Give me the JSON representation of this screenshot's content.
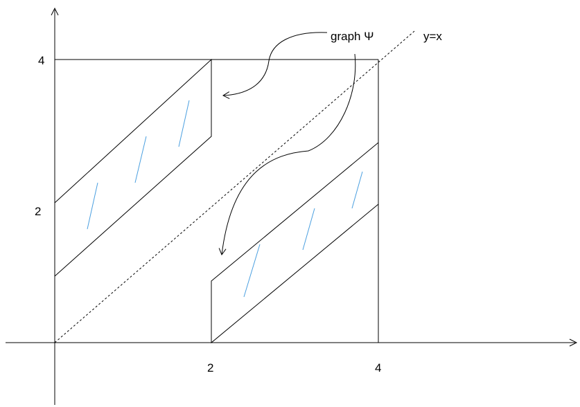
{
  "axes": {
    "x_tick_labels": [
      "2",
      "4"
    ],
    "y_tick_labels": [
      "2",
      "4"
    ]
  },
  "annotations": {
    "graph_label": "graph Ψ",
    "diagonal_label": "y=x"
  },
  "colors": {
    "lines": "#000000",
    "hatch": "#4a9fe0"
  }
}
